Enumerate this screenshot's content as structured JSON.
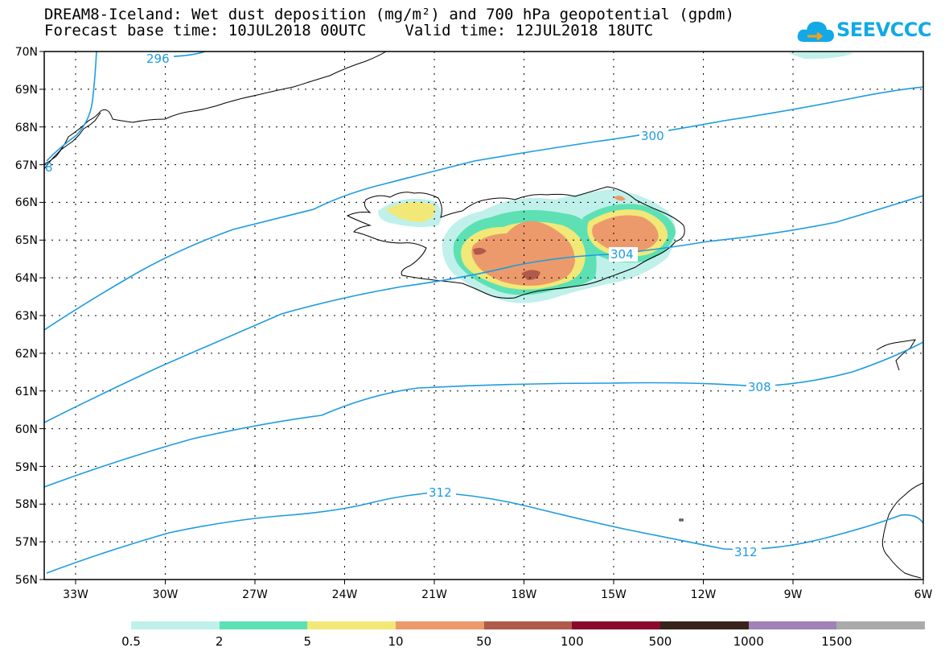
{
  "title_line1": "DREAM8-Iceland: Wet dust deposition (mg/m²) and 700 hPa geopotential (gpdm)",
  "forecast_base": "Forecast base time: 10JUL2018 00UTC",
  "valid_time": "Valid time: 12JUL2018 18UTC",
  "logo_text": "SEEVCCC",
  "lat_labels": [
    "70N",
    "69N",
    "68N",
    "67N",
    "66N",
    "65N",
    "64N",
    "63N",
    "62N",
    "61N",
    "60N",
    "59N",
    "58N",
    "57N",
    "56N"
  ],
  "lon_labels": [
    "33W",
    "30W",
    "27W",
    "24W",
    "21W",
    "18W",
    "15W",
    "12W",
    "9W",
    "6W"
  ],
  "contour_labels": [
    "296",
    "300",
    "304",
    "308",
    "312",
    "312",
    "8"
  ],
  "legend": {
    "labels": [
      "0.5",
      "2",
      "5",
      "10",
      "50",
      "100",
      "500",
      "1000",
      "1500"
    ],
    "colors": [
      "#c0f0ea",
      "#5ce0b4",
      "#f2e878",
      "#ec9a6c",
      "#b05a4c",
      "#8a0a2e",
      "#38241a",
      "#a081b8",
      "#aaaaaa"
    ]
  }
}
